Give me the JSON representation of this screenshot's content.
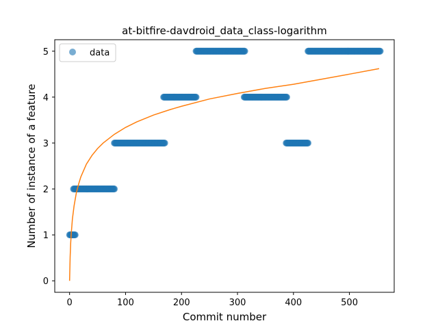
{
  "chart_data": {
    "type": "scatter",
    "title": "at-bitfire-davdroid_data_class-logarithm",
    "xlabel": "Commit number",
    "ylabel": "Number of instance of a feature",
    "xlim": [
      -26.5,
      580
    ],
    "ylim": [
      -0.25,
      5.25
    ],
    "xticks": [
      0,
      100,
      200,
      300,
      400,
      500
    ],
    "yticks": [
      0,
      1,
      2,
      3,
      4,
      5
    ],
    "grid": false,
    "legend": {
      "position": "top-left",
      "entries": [
        "data"
      ]
    },
    "colors": {
      "data": "#1f77b4",
      "fit": "#ff7f0e"
    },
    "series": [
      {
        "name": "data",
        "kind": "scatter",
        "segments": [
          {
            "x_start": 0,
            "x_end": 10,
            "y": 1
          },
          {
            "x_start": 7,
            "x_end": 80,
            "y": 2
          },
          {
            "x_start": 80,
            "x_end": 170,
            "y": 3
          },
          {
            "x_start": 168,
            "x_end": 226,
            "y": 4
          },
          {
            "x_start": 226,
            "x_end": 313,
            "y": 5
          },
          {
            "x_start": 312,
            "x_end": 388,
            "y": 4
          },
          {
            "x_start": 387,
            "x_end": 426,
            "y": 3
          },
          {
            "x_start": 426,
            "x_end": 555,
            "y": 5
          }
        ],
        "step": 1
      },
      {
        "kind": "line",
        "x": [
          0,
          1,
          2,
          3,
          5,
          8,
          12,
          16,
          20,
          30,
          40,
          50,
          60,
          80,
          100,
          120,
          150,
          180,
          200,
          250,
          300,
          350,
          400,
          450,
          500,
          553
        ],
        "y": [
          0.0,
          0.52,
          0.83,
          1.03,
          1.34,
          1.63,
          1.91,
          2.1,
          2.26,
          2.54,
          2.73,
          2.88,
          3.0,
          3.19,
          3.34,
          3.46,
          3.61,
          3.73,
          3.8,
          3.96,
          4.08,
          4.19,
          4.28,
          4.39,
          4.5,
          4.62
        ]
      }
    ]
  }
}
